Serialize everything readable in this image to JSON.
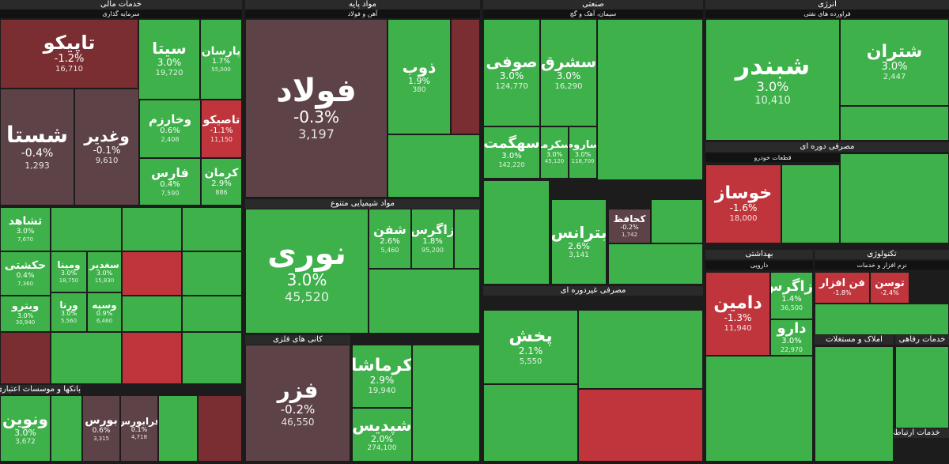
{
  "chart_data": {
    "type": "treemap",
    "colors": {
      "up": "#3eb14a",
      "up_light": "#4fc05a",
      "down": "#c0343b",
      "down_dark": "#7a2e32",
      "flat": "#5d4347",
      "neutral": "#6a4a4e"
    },
    "sectors": [
      {
        "name": "خدمات مالی",
        "sub": "سرمایه گذاری"
      },
      {
        "name": "مواد پایه",
        "sub": "آهن و فولاد"
      },
      {
        "name": "صنعتی",
        "sub": "سیمان، آهک و گچ"
      },
      {
        "name": "انرژی",
        "sub": "فراورده های نفتی"
      },
      {
        "name": "مصرفی دوره ای",
        "sub": "قطعات خودرو"
      },
      {
        "name": "مواد شیمیایی متنوع",
        "sub": ""
      },
      {
        "name": "مصرفی غیردوره ای",
        "sub": ""
      },
      {
        "name": "بهداشتی",
        "sub": "دارویی"
      },
      {
        "name": "تکنولوژی",
        "sub": "نرم افزار و خدمات"
      },
      {
        "name": "املاک و مستغلات",
        "sub": ""
      },
      {
        "name": "خدمات رفاهی",
        "sub": ""
      },
      {
        "name": "خدمات ارتباطی",
        "sub": ""
      },
      {
        "name": "کانی های فلزی",
        "sub": ""
      },
      {
        "name": "بانکها و موسسات اعتباری",
        "sub": ""
      }
    ],
    "tiles": [
      {
        "symbol": "تاپیکو",
        "change": "-1.2%",
        "value": "16,710",
        "tone": "down_dark"
      },
      {
        "symbol": "سیتا",
        "change": "3.0%",
        "value": "19,720",
        "tone": "up"
      },
      {
        "symbol": "پارسان",
        "change": "1.7%",
        "value": "55,000",
        "tone": "up"
      },
      {
        "symbol": "شستا",
        "change": "-0.4%",
        "value": "1,293",
        "tone": "flat"
      },
      {
        "symbol": "وغدیر",
        "change": "-0.1%",
        "value": "9,610",
        "tone": "flat"
      },
      {
        "symbol": "وخارزم",
        "change": "0.6%",
        "value": "2,408",
        "tone": "up"
      },
      {
        "symbol": "تاصیکو",
        "change": "-1.1%",
        "value": "11,150",
        "tone": "down"
      },
      {
        "symbol": "فارس",
        "change": "0.4%",
        "value": "7,590",
        "tone": "up"
      },
      {
        "symbol": "کرمان",
        "change": "2.9%",
        "value": "886",
        "tone": "up"
      },
      {
        "symbol": "ثشاهد",
        "change": "3.0%",
        "value": "7,670",
        "tone": "up"
      },
      {
        "symbol": "حکشتی",
        "change": "0.4%",
        "value": "7,360",
        "tone": "up"
      },
      {
        "symbol": "ویترو",
        "change": "3.0%",
        "value": "30,940",
        "tone": "up"
      },
      {
        "symbol": "ومینا",
        "change": "3.0%",
        "value": "18,750",
        "tone": "up"
      },
      {
        "symbol": "سغدیر",
        "change": "3.0%",
        "value": "15,830",
        "tone": "up"
      },
      {
        "symbol": "ورنا",
        "change": "3.0%",
        "value": "5,560",
        "tone": "up"
      },
      {
        "symbol": "وسپه",
        "change": "0.9%",
        "value": "6,460",
        "tone": "up"
      },
      {
        "symbol": "ونوین",
        "change": "3.0%",
        "value": "3,672",
        "tone": "up"
      },
      {
        "symbol": "بورس",
        "change": "0.6%",
        "value": "3,315",
        "tone": "flat"
      },
      {
        "symbol": "فرابورس",
        "change": "0.1%",
        "value": "4,718",
        "tone": "flat"
      },
      {
        "symbol": "فولاد",
        "change": "-0.3%",
        "value": "3,197",
        "tone": "flat"
      },
      {
        "symbol": "ذوب",
        "change": "1.9%",
        "value": "380",
        "tone": "up"
      },
      {
        "symbol": "نوری",
        "change": "3.0%",
        "value": "45,520",
        "tone": "up"
      },
      {
        "symbol": "شفن",
        "change": "2.6%",
        "value": "5,460",
        "tone": "up"
      },
      {
        "symbol": "زاگرس",
        "change": "1.8%",
        "value": "95,200",
        "tone": "up"
      },
      {
        "symbol": "فزر",
        "change": "-0.2%",
        "value": "46,550",
        "tone": "flat"
      },
      {
        "symbol": "کرماشا",
        "change": "2.9%",
        "value": "19,940",
        "tone": "up"
      },
      {
        "symbol": "شپدیس",
        "change": "2.0%",
        "value": "274,100",
        "tone": "up"
      },
      {
        "symbol": "صوفی",
        "change": "3.0%",
        "value": "124,770",
        "tone": "up"
      },
      {
        "symbol": "سشرق",
        "change": "3.0%",
        "value": "16,290",
        "tone": "up"
      },
      {
        "symbol": "سهگمت",
        "change": "3.0%",
        "value": "142,220",
        "tone": "up"
      },
      {
        "symbol": "سکرما",
        "change": "3.0%",
        "value": "45,120",
        "tone": "up"
      },
      {
        "symbol": "ساروم",
        "change": "3.0%",
        "value": "118,700",
        "tone": "up"
      },
      {
        "symbol": "بترانس",
        "change": "2.6%",
        "value": "3,141",
        "tone": "up"
      },
      {
        "symbol": "کحافظ",
        "change": "-0.2%",
        "value": "1,742",
        "tone": "flat"
      },
      {
        "symbol": "پخش",
        "change": "2.1%",
        "value": "5,550",
        "tone": "up"
      },
      {
        "symbol": "شبندر",
        "change": "3.0%",
        "value": "10,410",
        "tone": "up"
      },
      {
        "symbol": "شتران",
        "change": "3.0%",
        "value": "2,447",
        "tone": "up"
      },
      {
        "symbol": "خوساز",
        "change": "-1.6%",
        "value": "18,000",
        "tone": "down"
      },
      {
        "symbol": "دامین",
        "change": "-1.3%",
        "value": "11,940",
        "tone": "down"
      },
      {
        "symbol": "دزاگرس",
        "change": "1.4%",
        "value": "36,500",
        "tone": "up"
      },
      {
        "symbol": "دارو",
        "change": "3.0%",
        "value": "22,970",
        "tone": "up"
      },
      {
        "symbol": "فن افزار",
        "change": "-1.8%",
        "value": "",
        "tone": "down"
      },
      {
        "symbol": "توسن",
        "change": "-2.4%",
        "value": "",
        "tone": "down"
      }
    ]
  }
}
